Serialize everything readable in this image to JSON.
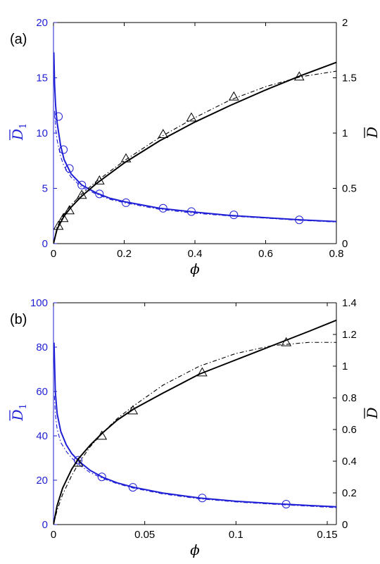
{
  "colors": {
    "left_axis": "#1f1fd6",
    "right_axis": "#000000",
    "blue_series": "#1f1fd6",
    "black_series": "#000000"
  },
  "chart_data": [
    {
      "type": "line",
      "panel_label": "(a)",
      "xlabel": "ϕ",
      "ylabel_left": {
        "symbol": "D",
        "subscript": "1",
        "overline": true
      },
      "ylabel_right": {
        "symbol": "D",
        "overline": true
      },
      "xlim": [
        0,
        0.8
      ],
      "ylim_left": [
        0,
        20
      ],
      "ylim_right": [
        0,
        2
      ],
      "xticks": [
        "0",
        "0.2",
        "0.4",
        "0.6",
        "0.8"
      ],
      "xtick_values": [
        0,
        0.2,
        0.4,
        0.6,
        0.8
      ],
      "yticks_left": [
        "0",
        "5",
        "10",
        "15",
        "20"
      ],
      "ytick_values_left": [
        0,
        5,
        10,
        15,
        20
      ],
      "yticks_right": [
        "0",
        "0.5",
        "1",
        "1.5",
        "2"
      ],
      "ytick_values_right": [
        0,
        0.5,
        1,
        1.5,
        2
      ],
      "grid": false,
      "series": [
        {
          "axis": "left",
          "style": "solid",
          "color": "blue",
          "x": [
            0.001,
            0.003,
            0.006,
            0.01,
            0.02,
            0.03,
            0.05,
            0.08,
            0.12,
            0.16,
            0.2,
            0.3,
            0.4,
            0.5,
            0.6,
            0.7,
            0.8
          ],
          "y": [
            17.3,
            14.5,
            12.5,
            11.0,
            8.9,
            7.6,
            6.3,
            5.3,
            4.6,
            4.1,
            3.8,
            3.2,
            2.85,
            2.55,
            2.35,
            2.15,
            2.0
          ]
        },
        {
          "axis": "left",
          "style": "dashdot",
          "color": "blue",
          "x": [
            0.003,
            0.006,
            0.01,
            0.02,
            0.03,
            0.05,
            0.08,
            0.12,
            0.16,
            0.2,
            0.3,
            0.4,
            0.5,
            0.6,
            0.7,
            0.8
          ],
          "y": [
            12.0,
            10.5,
            9.4,
            7.9,
            7.0,
            6.0,
            5.1,
            4.5,
            4.0,
            3.7,
            3.1,
            2.75,
            2.5,
            2.3,
            2.1,
            1.95
          ]
        },
        {
          "axis": "left",
          "style": "markers",
          "marker": "circle",
          "color": "blue",
          "x": [
            0.014,
            0.028,
            0.045,
            0.08,
            0.13,
            0.205,
            0.31,
            0.39,
            0.51,
            0.695
          ],
          "y": [
            11.5,
            8.5,
            6.8,
            5.3,
            4.5,
            3.7,
            3.2,
            2.9,
            2.6,
            2.15
          ]
        },
        {
          "axis": "right",
          "style": "solid",
          "color": "black",
          "x": [
            0,
            0.01,
            0.03,
            0.05,
            0.08,
            0.12,
            0.2,
            0.3,
            0.4,
            0.5,
            0.6,
            0.7,
            0.8
          ],
          "y": [
            0,
            0.13,
            0.25,
            0.33,
            0.43,
            0.54,
            0.73,
            0.93,
            1.1,
            1.25,
            1.39,
            1.52,
            1.64
          ]
        },
        {
          "axis": "right",
          "style": "dashdot",
          "color": "black",
          "x": [
            0,
            0.01,
            0.03,
            0.05,
            0.08,
            0.12,
            0.2,
            0.3,
            0.4,
            0.5,
            0.6,
            0.7,
            0.8
          ],
          "y": [
            0,
            0.15,
            0.27,
            0.35,
            0.45,
            0.56,
            0.75,
            0.96,
            1.14,
            1.3,
            1.42,
            1.51,
            1.56
          ]
        },
        {
          "axis": "right",
          "style": "markers",
          "marker": "triangle",
          "color": "black",
          "x": [
            0.014,
            0.028,
            0.045,
            0.08,
            0.13,
            0.205,
            0.31,
            0.39,
            0.51,
            0.695
          ],
          "y": [
            0.16,
            0.23,
            0.3,
            0.44,
            0.57,
            0.77,
            0.99,
            1.14,
            1.33,
            1.51
          ]
        }
      ]
    },
    {
      "type": "line",
      "panel_label": "(b)",
      "xlabel": "ϕ",
      "ylabel_left": {
        "symbol": "D",
        "subscript": "1",
        "overline": true
      },
      "ylabel_right": {
        "symbol": "D",
        "overline": true
      },
      "xlim": [
        0,
        0.155
      ],
      "ylim_left": [
        0,
        100
      ],
      "ylim_right": [
        0,
        1.4
      ],
      "xticks": [
        "0",
        "0.05",
        "0.1",
        "0.15"
      ],
      "xtick_values": [
        0,
        0.05,
        0.1,
        0.15
      ],
      "yticks_left": [
        "0",
        "20",
        "40",
        "60",
        "80",
        "100"
      ],
      "ytick_values_left": [
        0,
        20,
        40,
        60,
        80,
        100
      ],
      "yticks_right": [
        "0",
        "0.2",
        "0.4",
        "0.6",
        "0.8",
        "1",
        "1.2",
        "1.4"
      ],
      "ytick_values_right": [
        0,
        0.2,
        0.4,
        0.6,
        0.8,
        1,
        1.2,
        1.4
      ],
      "grid": false,
      "series": [
        {
          "axis": "left",
          "style": "solid",
          "color": "blue",
          "x": [
            0.0003,
            0.001,
            0.002,
            0.004,
            0.007,
            0.01,
            0.014,
            0.02,
            0.027,
            0.035,
            0.044,
            0.06,
            0.08,
            0.1,
            0.12,
            0.14,
            0.155
          ],
          "y": [
            82,
            60,
            50,
            42,
            36,
            32,
            28.5,
            24.5,
            21.3,
            18.8,
            16.8,
            14.2,
            12.0,
            10.5,
            9.5,
            8.6,
            8.0
          ]
        },
        {
          "axis": "left",
          "style": "dashdot",
          "color": "blue",
          "x": [
            0.0005,
            0.001,
            0.002,
            0.004,
            0.007,
            0.01,
            0.014,
            0.02,
            0.027,
            0.035,
            0.044,
            0.06,
            0.08,
            0.1,
            0.12,
            0.14,
            0.155
          ],
          "y": [
            58,
            50,
            43,
            37,
            33,
            30,
            27,
            23.5,
            20.8,
            18.4,
            16.4,
            13.8,
            11.6,
            10.2,
            9.2,
            8.3,
            7.6
          ]
        },
        {
          "axis": "left",
          "style": "markers",
          "marker": "circle",
          "color": "blue",
          "x": [
            0.0135,
            0.0265,
            0.0435,
            0.0815,
            0.1275
          ],
          "y": [
            29,
            21.5,
            16.8,
            12,
            9.2
          ]
        },
        {
          "axis": "right",
          "style": "solid",
          "color": "black",
          "x": [
            0,
            0.002,
            0.005,
            0.01,
            0.014,
            0.02,
            0.027,
            0.035,
            0.044,
            0.06,
            0.08,
            0.1,
            0.12,
            0.14,
            0.155
          ],
          "y": [
            0,
            0.12,
            0.23,
            0.35,
            0.42,
            0.5,
            0.58,
            0.66,
            0.73,
            0.83,
            0.95,
            1.04,
            1.13,
            1.22,
            1.29
          ]
        },
        {
          "axis": "right",
          "style": "dashdot",
          "color": "black",
          "x": [
            0,
            0.002,
            0.005,
            0.01,
            0.014,
            0.02,
            0.027,
            0.035,
            0.044,
            0.06,
            0.08,
            0.1,
            0.12,
            0.14,
            0.155
          ],
          "y": [
            0,
            0.09,
            0.19,
            0.31,
            0.39,
            0.49,
            0.58,
            0.67,
            0.75,
            0.88,
            1.0,
            1.08,
            1.13,
            1.15,
            1.15
          ]
        },
        {
          "axis": "right",
          "style": "markers",
          "marker": "triangle",
          "color": "black",
          "x": [
            0.0135,
            0.0265,
            0.0435,
            0.0815,
            0.1275
          ],
          "y": [
            0.39,
            0.56,
            0.72,
            0.96,
            1.15
          ]
        }
      ]
    }
  ]
}
